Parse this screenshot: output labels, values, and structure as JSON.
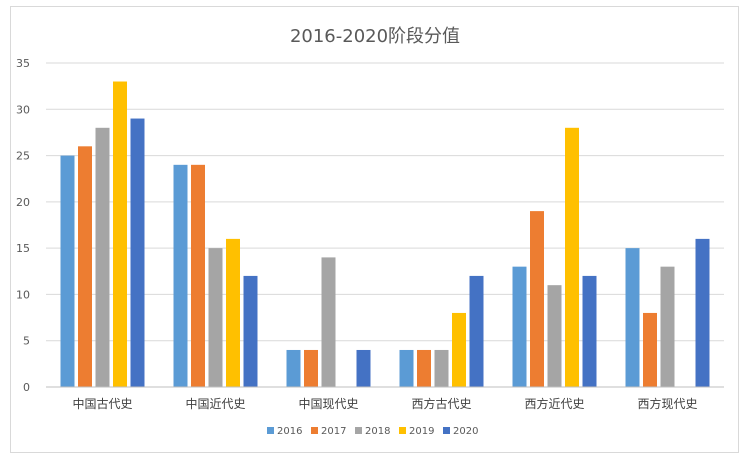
{
  "chart_data": {
    "type": "bar",
    "title": "2016-2020阶段分值",
    "xlabel": "",
    "ylabel": "",
    "ylim": [
      0,
      35
    ],
    "yticks": [
      0,
      5,
      10,
      15,
      20,
      25,
      30,
      35
    ],
    "grid": true,
    "legend_position": "bottom",
    "categories": [
      "中国古代史",
      "中国近代史",
      "中国现代史",
      "西方古代史",
      "西方近代史",
      "西方现代史"
    ],
    "series": [
      {
        "name": "2016",
        "color": "#5B9BD5",
        "values": [
          25,
          24,
          4,
          4,
          13,
          15
        ]
      },
      {
        "name": "2017",
        "color": "#ED7D31",
        "values": [
          26,
          24,
          4,
          4,
          19,
          8
        ]
      },
      {
        "name": "2018",
        "color": "#A5A5A5",
        "values": [
          28,
          15,
          14,
          4,
          11,
          13
        ]
      },
      {
        "name": "2019",
        "color": "#FFC000",
        "values": [
          33,
          16,
          0,
          8,
          28,
          0
        ]
      },
      {
        "name": "2020",
        "color": "#4472C4",
        "values": [
          29,
          12,
          4,
          12,
          12,
          16
        ]
      }
    ]
  }
}
